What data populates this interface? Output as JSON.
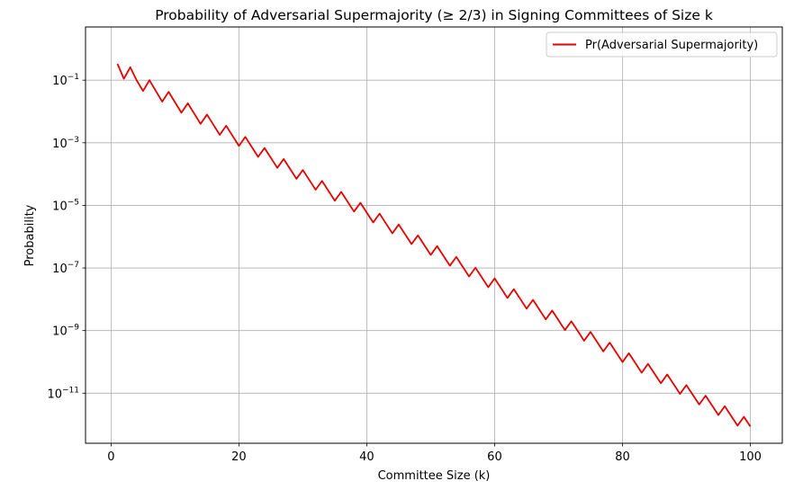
{
  "chart_data": {
    "type": "line",
    "title": "Probability of Adversarial Supermajority (≥ 2/3) in Signing Committees of Size k",
    "xlabel": "Committee Size (k)",
    "ylabel": "Probability",
    "xlim": [
      -4,
      105
    ],
    "ylim_log10": [
      -12.6,
      0.7
    ],
    "yscale": "log",
    "grid": true,
    "legend_position": "top-right",
    "x_ticks": [
      0,
      20,
      40,
      60,
      80,
      100
    ],
    "x_tick_labels": [
      "0",
      "20",
      "40",
      "60",
      "80",
      "100"
    ],
    "y_tick_exponents": [
      -1,
      -3,
      -5,
      -7,
      -9,
      -11
    ],
    "y_tick_labels": [
      {
        "base": "10",
        "exp": "−1"
      },
      {
        "base": "10",
        "exp": "−3"
      },
      {
        "base": "10",
        "exp": "−5"
      },
      {
        "base": "10",
        "exp": "−7"
      },
      {
        "base": "10",
        "exp": "−9"
      },
      {
        "base": "10",
        "exp": "−11"
      }
    ],
    "series": [
      {
        "name": "Pr(Adversarial Supermajority)",
        "color": "#e30000",
        "x": [
          1,
          2,
          3,
          4,
          5,
          6,
          7,
          8,
          9,
          10,
          11,
          12,
          13,
          14,
          15,
          16,
          17,
          18,
          19,
          20,
          21,
          22,
          23,
          24,
          25,
          26,
          27,
          28,
          29,
          30,
          31,
          32,
          33,
          34,
          35,
          36,
          37,
          38,
          39,
          40,
          41,
          42,
          43,
          44,
          45,
          46,
          47,
          48,
          49,
          50,
          51,
          52,
          53,
          54,
          55,
          56,
          57,
          58,
          59,
          60,
          61,
          62,
          63,
          64,
          65,
          66,
          67,
          68,
          69,
          70,
          71,
          72,
          73,
          74,
          75,
          76,
          77,
          78,
          79,
          80,
          81,
          82,
          83,
          84,
          85,
          86,
          87,
          88,
          89,
          90,
          91,
          92,
          93,
          94,
          95,
          96,
          97,
          98,
          99,
          100
        ],
        "y": [
          0.333,
          0.111,
          0.259,
          0.0988,
          0.0453,
          0.1,
          0.0453,
          0.0206,
          0.0424,
          0.0197,
          0.00913,
          0.0183,
          0.0086,
          0.00403,
          0.00796,
          0.00378,
          0.00179,
          0.00349,
          0.00167,
          0.000796,
          0.00154,
          0.000739,
          0.000355,
          0.000682,
          0.000328,
          0.000158,
          0.000303,
          0.000146,
          7.06e-05,
          0.000135,
          6.53e-05,
          3.16e-05,
          6.04e-05,
          2.92e-05,
          1.41e-05,
          2.7e-05,
          1.31e-05,
          6.34e-06,
          1.21e-05,
          5.87e-06,
          2.85e-06,
          5.44e-06,
          2.64e-06,
          1.28e-06,
          2.45e-06,
          1.19e-06,
          5.78e-07,
          1.1e-06,
          5.37e-07,
          2.61e-07,
          4.99e-07,
          2.43e-07,
          1.18e-07,
          2.26e-07,
          1.1e-07,
          5.35e-08,
          1.02e-07,
          4.98e-08,
          2.43e-08,
          4.64e-08,
          2.26e-08,
          1.1e-08,
          2.1e-08,
          1.03e-08,
          5.01e-09,
          9.57e-09,
          4.67e-09,
          2.28e-09,
          4.36e-09,
          2.13e-09,
          1.04e-09,
          1.98e-09,
          9.69e-10,
          4.74e-10,
          9.05e-10,
          4.42e-10,
          2.16e-10,
          4.13e-10,
          2.02e-10,
          9.88e-11,
          1.89e-10,
          9.24e-11,
          4.52e-11,
          8.64e-11,
          4.23e-11,
          2.07e-11,
          3.95e-11,
          1.94e-11,
          9.49e-12,
          1.81e-11,
          8.87e-12,
          4.35e-12,
          8.3e-12,
          4.07e-12,
          2e-12,
          3.82e-12,
          1.87e-12,
          9.19e-13,
          1.76e-12,
          8.62e-13
        ]
      }
    ]
  }
}
